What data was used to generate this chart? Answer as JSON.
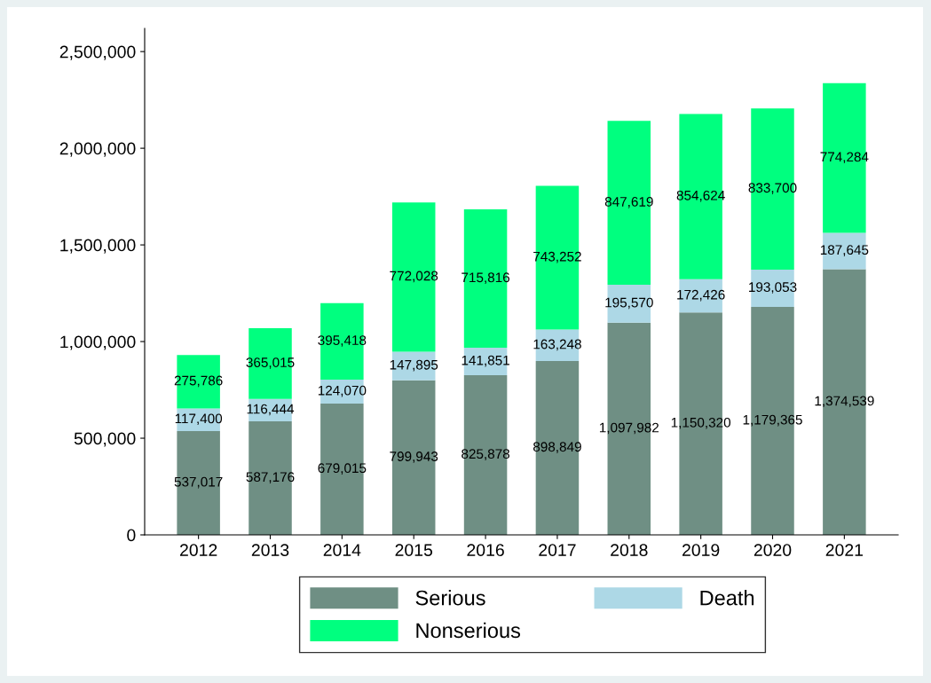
{
  "chart_data": {
    "type": "bar",
    "stacked": true,
    "categories": [
      "2012",
      "2013",
      "2014",
      "2015",
      "2016",
      "2017",
      "2018",
      "2019",
      "2020",
      "2021"
    ],
    "series": [
      {
        "name": "Serious",
        "color": "#6f8f84",
        "values": [
          537017,
          587176,
          679015,
          799943,
          825878,
          898849,
          1097982,
          1150320,
          1179365,
          1374539
        ],
        "value_labels": [
          "537,017",
          "587,176",
          "679,015",
          "799,943",
          "825,878",
          "898,849",
          "1,097,982",
          "1,150,320",
          "1,179,365",
          "1,374,539"
        ]
      },
      {
        "name": "Death",
        "color": "#add8e6",
        "values": [
          117400,
          116444,
          124070,
          147895,
          141851,
          163248,
          195570,
          172426,
          193053,
          187645
        ],
        "value_labels": [
          "117,400",
          "116,444",
          "124,070",
          "147,895",
          "141,851",
          "163,248",
          "195,570",
          "172,426",
          "193,053",
          "187,645"
        ]
      },
      {
        "name": "Nonserious",
        "color": "#00ff7f",
        "values": [
          275786,
          365015,
          395418,
          772028,
          715816,
          743252,
          847619,
          854624,
          833700,
          774284
        ],
        "value_labels": [
          "275,786",
          "365,015",
          "395,418",
          "772,028",
          "715,816",
          "743,252",
          "847,619",
          "854,624",
          "833,700",
          "774,284"
        ]
      }
    ],
    "ylim": [
      0,
      2620000
    ],
    "yticks": [
      {
        "value": 0,
        "label": "0"
      },
      {
        "value": 500000,
        "label": "500,000"
      },
      {
        "value": 1000000,
        "label": "1,000,000"
      },
      {
        "value": 1500000,
        "label": "1,500,000"
      },
      {
        "value": 2000000,
        "label": "2,000,000"
      },
      {
        "value": 2500000,
        "label": "2,500,000"
      }
    ],
    "legend": "bottom",
    "grid": false
  }
}
